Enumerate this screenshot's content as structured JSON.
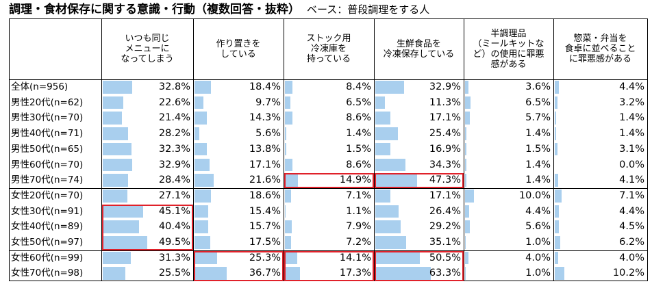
{
  "title": "調理・食材保存に関する意識・行動（複数回答・抜粋）",
  "base_note": "ベース：普段調理をする人",
  "chart_data": {
    "type": "table",
    "title": "調理・食材保存に関する意識・行動（複数回答・抜粋）",
    "subtitle": "ベース：普段調理をする人",
    "columns": [
      "いつも同じ\nメニューに\nなってしまう",
      "作り置きを\nしている",
      "ストック用\n冷凍庫を\n持っている",
      "生鮮食品を\n冷凍保存している",
      "半調理品\n（ミールキットな\nど）の使用に罪悪\n感がある",
      "惣菜・弁当を\n食卓に並べること\nに罪悪感がある"
    ],
    "rows": [
      "全体(n=956)",
      "男性20代(n=62)",
      "男性30代(n=70)",
      "男性40代(n=71)",
      "男性50代(n=65)",
      "男性60代(n=70)",
      "男性70代(n=74)",
      "女性20代(n=70)",
      "女性30代(n=91)",
      "女性40代(n=89)",
      "女性50代(n=97)",
      "女性60代(n=99)",
      "女性70代(n=98)"
    ],
    "values": [
      [
        32.8,
        18.4,
        8.4,
        32.9,
        3.6,
        4.4
      ],
      [
        22.6,
        9.7,
        6.5,
        11.3,
        6.5,
        3.2
      ],
      [
        21.4,
        14.3,
        8.6,
        17.1,
        5.7,
        1.4
      ],
      [
        28.2,
        5.6,
        1.4,
        25.4,
        1.4,
        1.4
      ],
      [
        32.3,
        13.8,
        1.5,
        16.9,
        1.5,
        3.1
      ],
      [
        32.9,
        17.1,
        8.6,
        34.3,
        1.4,
        0.0
      ],
      [
        28.4,
        21.6,
        14.9,
        47.3,
        1.4,
        4.1
      ],
      [
        27.1,
        18.6,
        7.1,
        17.1,
        10.0,
        7.1
      ],
      [
        45.1,
        15.4,
        1.1,
        26.4,
        4.4,
        4.4
      ],
      [
        40.4,
        15.7,
        7.9,
        29.2,
        5.6,
        4.5
      ],
      [
        49.5,
        17.5,
        7.2,
        35.1,
        1.0,
        6.2
      ],
      [
        31.3,
        25.3,
        14.1,
        50.5,
        4.0,
        4.0
      ],
      [
        25.5,
        36.7,
        17.3,
        63.3,
        1.0,
        10.2
      ]
    ],
    "unit": "%",
    "highlighted": [
      {
        "column": 0,
        "rows": [
          8,
          9,
          10
        ]
      },
      {
        "column": 1,
        "rows": [
          11,
          12
        ]
      },
      {
        "column": 2,
        "rows": [
          6
        ]
      },
      {
        "column": 2,
        "rows": [
          11,
          12
        ]
      },
      {
        "column": 3,
        "rows": [
          6
        ]
      },
      {
        "column": 3,
        "rows": [
          11,
          12
        ]
      }
    ],
    "colors": {
      "bar": "#a9cfee",
      "highlight": "#e0212a",
      "grid": "#000000"
    }
  }
}
